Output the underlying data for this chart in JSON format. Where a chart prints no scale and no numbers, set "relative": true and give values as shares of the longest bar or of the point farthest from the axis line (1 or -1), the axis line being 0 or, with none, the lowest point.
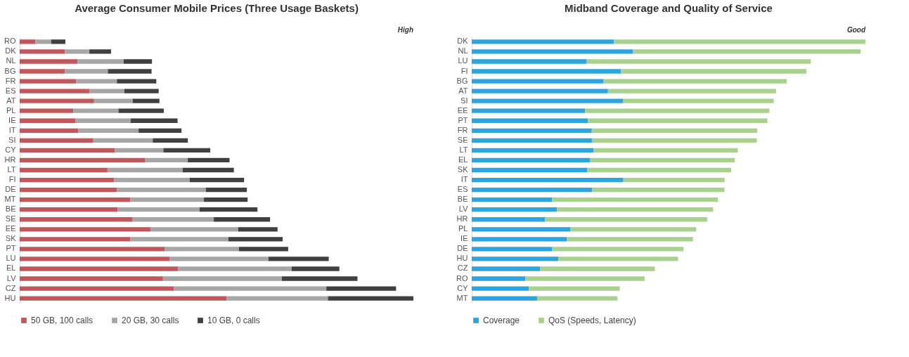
{
  "chart_data": [
    {
      "type": "bar",
      "orientation": "horizontal",
      "stacked": true,
      "relative": true,
      "title": "Average Consumer Mobile Prices (Three Usage Baskets)",
      "annotations": [
        "High"
      ],
      "legend": "bottom",
      "grid": false,
      "categories": [
        "RO",
        "DK",
        "NL",
        "BG",
        "FR",
        "ES",
        "AT",
        "PL",
        "IE",
        "IT",
        "SI",
        "CY",
        "HR",
        "LT",
        "FI",
        "DE",
        "MT",
        "BE",
        "SE",
        "EE",
        "SK",
        "PT",
        "LU",
        "EL",
        "LV",
        "CZ",
        "HU"
      ],
      "series": [
        {
          "name": "50 GB, 100 calls",
          "color": "#c0575b",
          "values": [
            0.04,
            0.115,
            0.147,
            0.115,
            0.143,
            0.177,
            0.189,
            0.136,
            0.142,
            0.149,
            0.187,
            0.242,
            0.319,
            0.223,
            0.24,
            0.247,
            0.281,
            0.249,
            0.287,
            0.332,
            0.281,
            0.368,
            0.381,
            0.402,
            0.364,
            0.392,
            0.526
          ]
        },
        {
          "name": "20 GB, 30 calls",
          "color": "#a6a6a6",
          "values": [
            0.04,
            0.062,
            0.117,
            0.109,
            0.104,
            0.089,
            0.098,
            0.115,
            0.14,
            0.153,
            0.151,
            0.123,
            0.108,
            0.191,
            0.192,
            0.226,
            0.187,
            0.208,
            0.206,
            0.223,
            0.249,
            0.189,
            0.251,
            0.289,
            0.302,
            0.387,
            0.257
          ]
        },
        {
          "name": "10 GB, 0 calls",
          "color": "#404040",
          "values": [
            0.036,
            0.055,
            0.072,
            0.111,
            0.1,
            0.087,
            0.068,
            0.115,
            0.119,
            0.109,
            0.089,
            0.119,
            0.106,
            0.13,
            0.138,
            0.104,
            0.111,
            0.147,
            0.143,
            0.1,
            0.138,
            0.125,
            0.153,
            0.121,
            0.192,
            0.177,
            0.217
          ]
        }
      ]
    },
    {
      "type": "bar",
      "orientation": "horizontal",
      "stacked": true,
      "relative": true,
      "title": "Midband Coverage and Quality of Service",
      "annotations": [
        "Good"
      ],
      "legend": "bottom",
      "grid": false,
      "categories": [
        "DK",
        "NL",
        "LU",
        "FI",
        "BG",
        "AT",
        "SI",
        "EE",
        "PT",
        "FR",
        "SE",
        "LT",
        "EL",
        "SK",
        "IT",
        "ES",
        "BE",
        "LV",
        "HR",
        "PL",
        "IE",
        "DE",
        "HU",
        "CZ",
        "RO",
        "CY",
        "MT"
      ],
      "series": [
        {
          "name": "Coverage",
          "color": "#2fa4dc",
          "values": [
            0.361,
            0.41,
            0.292,
            0.379,
            0.335,
            0.346,
            0.384,
            0.288,
            0.295,
            0.305,
            0.306,
            0.31,
            0.301,
            0.293,
            0.385,
            0.306,
            0.204,
            0.216,
            0.186,
            0.25,
            0.242,
            0.204,
            0.22,
            0.174,
            0.136,
            0.145,
            0.166
          ]
        },
        {
          "name": "QoS (Speeds, Latency)",
          "color": "#a9d18e",
          "values": [
            0.639,
            0.578,
            0.569,
            0.471,
            0.465,
            0.427,
            0.383,
            0.468,
            0.456,
            0.42,
            0.418,
            0.366,
            0.367,
            0.366,
            0.257,
            0.336,
            0.421,
            0.397,
            0.412,
            0.32,
            0.32,
            0.334,
            0.304,
            0.291,
            0.303,
            0.231,
            0.204
          ]
        }
      ]
    }
  ]
}
